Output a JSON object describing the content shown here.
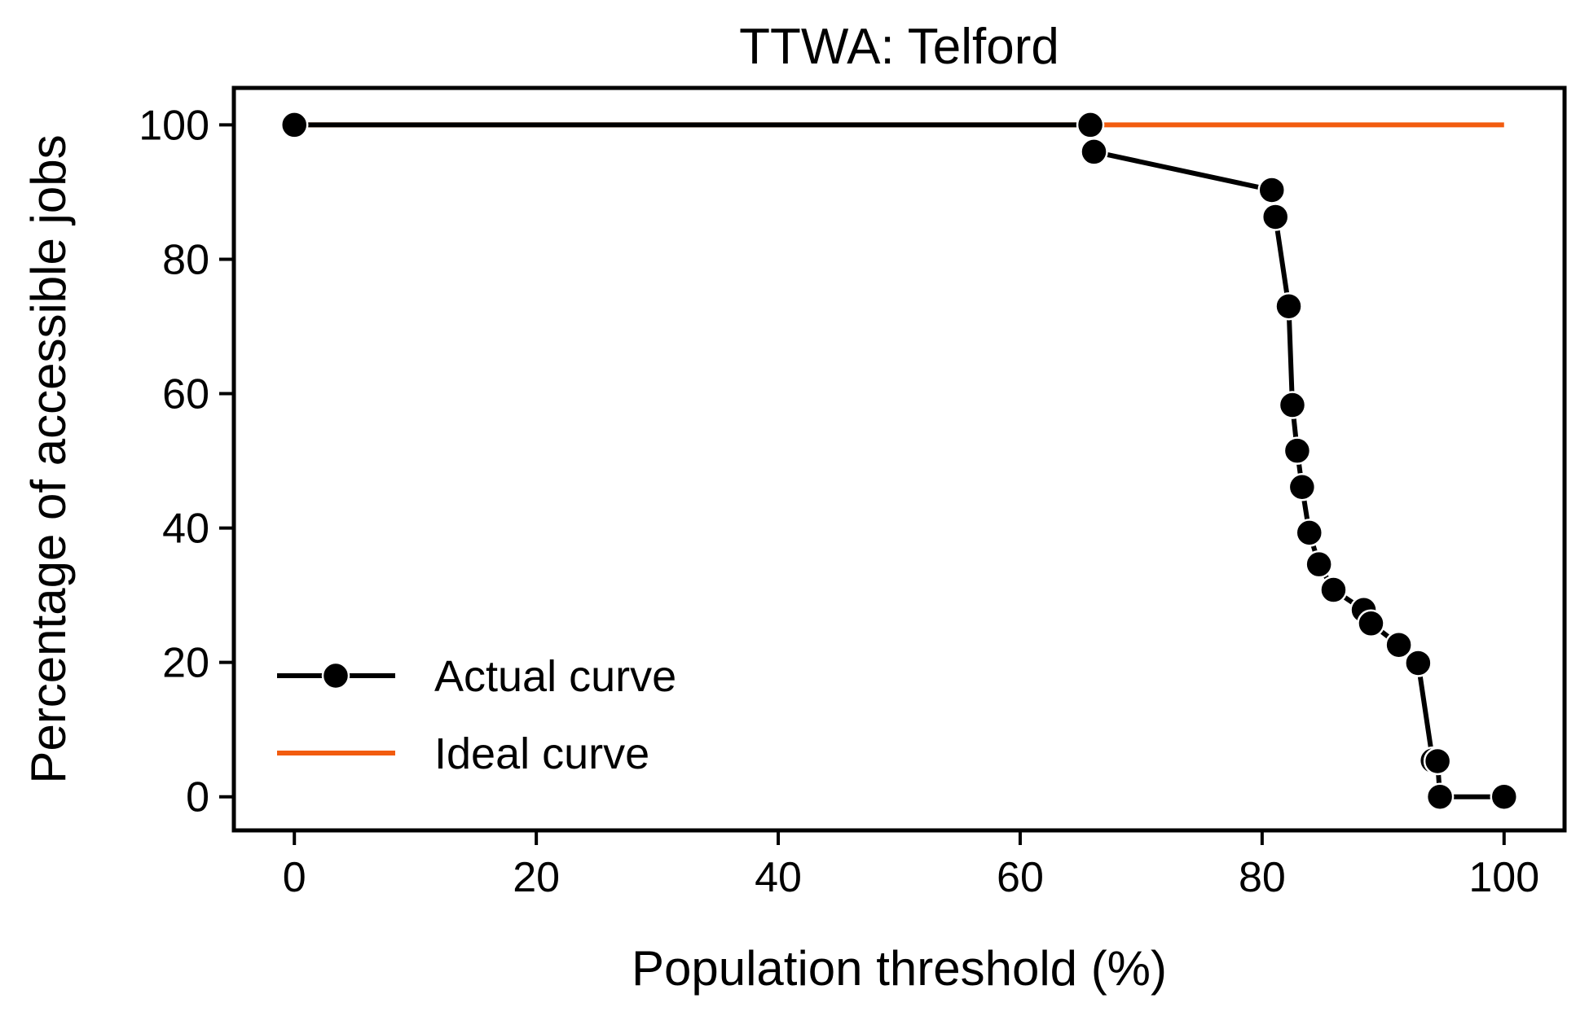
{
  "chart_data": {
    "type": "line",
    "title": "TTWA: Telford",
    "xlabel": "Population threshold (%)",
    "ylabel": "Percentage of accessible jobs",
    "xlim": [
      -5,
      105
    ],
    "ylim": [
      -5,
      105.5
    ],
    "xticks": [
      0,
      20,
      40,
      60,
      80,
      100
    ],
    "yticks": [
      0,
      20,
      40,
      60,
      80,
      100
    ],
    "xtick_labels": [
      "0",
      "20",
      "40",
      "60",
      "80",
      "100"
    ],
    "ytick_labels": [
      "0",
      "20",
      "40",
      "60",
      "80",
      "100"
    ],
    "grid": false,
    "legend_position": "lower-left",
    "series": [
      {
        "name": "Actual curve",
        "color": "#000000",
        "marker": "circle",
        "x": [
          0,
          65.8,
          66.1,
          80.8,
          81.1,
          82.2,
          82.5,
          82.9,
          83.3,
          83.9,
          84.7,
          85.9,
          88.4,
          89.0,
          91.3,
          92.9,
          94.1,
          94.5,
          94.7,
          100
        ],
        "y": [
          100,
          100,
          96.0,
          90.3,
          86.3,
          73.0,
          58.3,
          51.5,
          46.1,
          39.3,
          34.6,
          30.8,
          27.8,
          25.8,
          22.6,
          19.9,
          5.4,
          5.3,
          0,
          0
        ]
      },
      {
        "name": "Ideal curve",
        "color": "#f25c0f",
        "marker": "none",
        "x": [
          0,
          100
        ],
        "y": [
          100,
          100
        ]
      }
    ]
  }
}
